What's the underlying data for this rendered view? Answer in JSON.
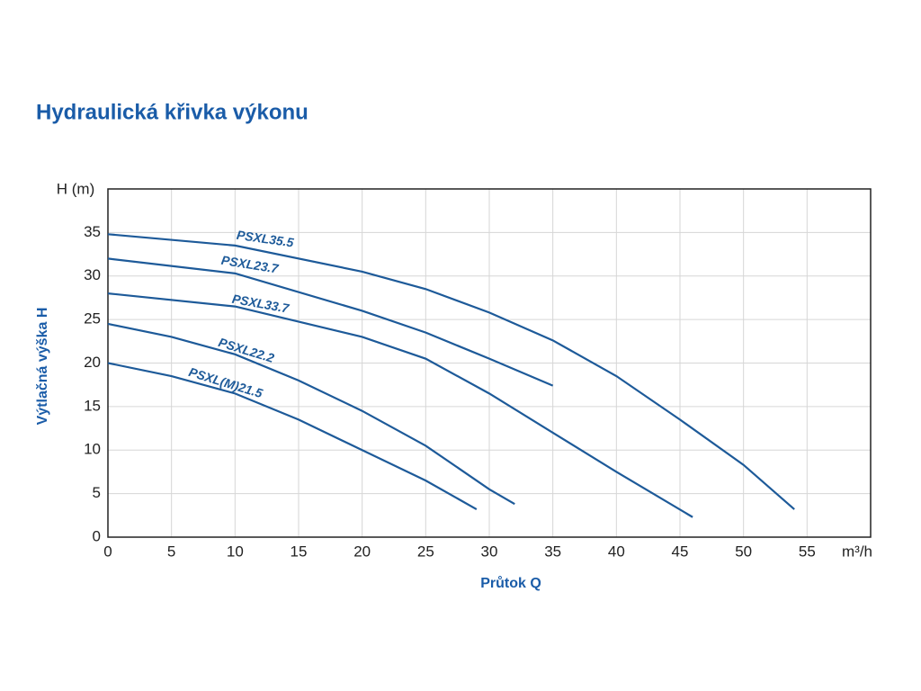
{
  "chart_data": {
    "type": "line",
    "title": "Hydraulická křivka výkonu",
    "y_label": "Výtlačná výška H",
    "x_label": "Průtok Q",
    "y_unit": "H (m)",
    "x_unit": "m³/h",
    "xlim": [
      0,
      60
    ],
    "xticks": [
      0,
      5,
      10,
      15,
      20,
      25,
      30,
      35,
      40,
      45,
      50,
      55
    ],
    "ylim": [
      0,
      40
    ],
    "yticks": [
      0,
      5,
      10,
      15,
      20,
      25,
      30,
      35
    ],
    "grid": true,
    "series": [
      {
        "name": "PSXL35.5",
        "color": "#1d5a99",
        "x": [
          0,
          10,
          20,
          25,
          30,
          35,
          40,
          45,
          50,
          54
        ],
        "values": [
          34.8,
          33.5,
          30.5,
          28.5,
          25.8,
          22.6,
          18.5,
          13.5,
          8.3,
          3.2
        ]
      },
      {
        "name": "PSXL23.7",
        "color": "#1d5a99",
        "x": [
          0,
          10,
          20,
          25,
          30,
          35
        ],
        "values": [
          32,
          30.3,
          26,
          23.5,
          20.5,
          17.4
        ]
      },
      {
        "name": "PSXL33.7",
        "color": "#1d5a99",
        "x": [
          0,
          10,
          20,
          25,
          30,
          35,
          40,
          46
        ],
        "values": [
          28,
          26.5,
          23,
          20.5,
          16.5,
          12,
          7.5,
          2.3
        ]
      },
      {
        "name": "PSXL22.2",
        "color": "#1d5a99",
        "x": [
          0,
          5,
          10,
          15,
          20,
          25,
          30,
          32
        ],
        "values": [
          24.5,
          23,
          21,
          18,
          14.5,
          10.5,
          5.5,
          3.8
        ]
      },
      {
        "name": "PSXL(M)21.5",
        "color": "#1d5a99",
        "x": [
          0,
          5,
          10,
          15,
          20,
          25,
          29
        ],
        "values": [
          20,
          18.5,
          16.5,
          13.5,
          10,
          6.5,
          3.2
        ]
      }
    ]
  }
}
